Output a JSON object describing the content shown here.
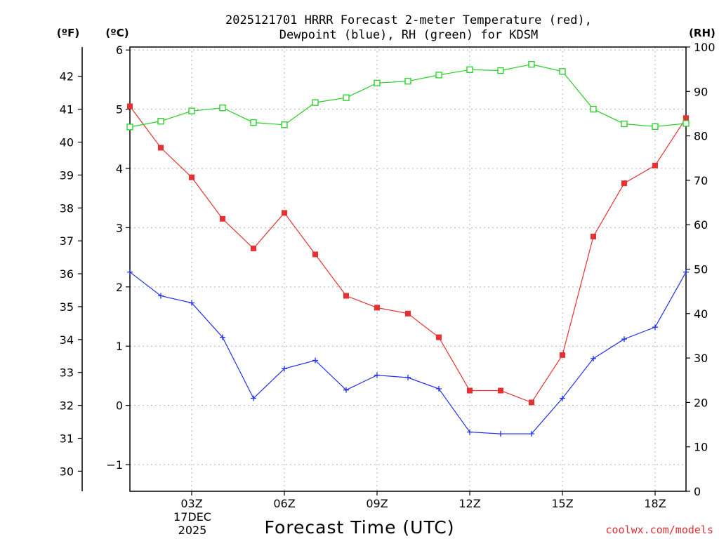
{
  "title_line1": "2025121701 HRRR Forecast 2-meter Temperature (red),",
  "title_line2": "Dewpoint (blue), RH (green) for KDSM",
  "units": {
    "fahrenheit": "(ºF)",
    "celsius": "(ºC)",
    "rh": "(RH)"
  },
  "xlabel": "Forecast Time (UTC)",
  "date_label": {
    "day": "17DEC",
    "year": "2025"
  },
  "credit": "coolwx.com/models",
  "colors": {
    "temperature": "#e83030",
    "dewpoint": "#2030e8",
    "rh": "#20d020"
  },
  "chart_data": {
    "type": "line",
    "title": "2025121701 HRRR Forecast 2-meter Temperature (red), Dewpoint (blue), RH (green) for KDSM",
    "x": [
      1,
      2,
      3,
      4,
      5,
      6,
      7,
      8,
      9,
      10,
      11,
      12,
      13,
      14,
      15,
      16,
      17,
      18,
      19
    ],
    "x_unit": "hour UTC",
    "xlim": [
      1,
      19
    ],
    "x_ticks": [
      {
        "value": 3,
        "label": "03Z"
      },
      {
        "value": 6,
        "label": "06Z"
      },
      {
        "value": 9,
        "label": "09Z"
      },
      {
        "value": 12,
        "label": "12Z"
      },
      {
        "value": 15,
        "label": "15Z"
      },
      {
        "value": 18,
        "label": "18Z"
      }
    ],
    "left_axis_c": {
      "label": "(ºC)",
      "range": [
        -1.45,
        6.05
      ],
      "ticks": [
        -1,
        0,
        1,
        2,
        3,
        4,
        5,
        6
      ]
    },
    "left_axis_f": {
      "label": "(ºF)",
      "range": [
        29.39,
        42.89
      ],
      "ticks": [
        30,
        31,
        32,
        33,
        34,
        35,
        36,
        37,
        38,
        39,
        40,
        41,
        42
      ]
    },
    "right_axis": {
      "label": "(RH)",
      "range": [
        0,
        100
      ],
      "ticks": [
        0,
        10,
        20,
        30,
        40,
        50,
        60,
        70,
        80,
        90,
        100
      ]
    },
    "grid": true,
    "series": [
      {
        "name": "Temperature",
        "axis": "celsius",
        "marker": "filled-square",
        "values": [
          5.05,
          4.35,
          3.85,
          3.15,
          2.65,
          3.25,
          2.55,
          1.85,
          1.65,
          1.55,
          1.15,
          0.25,
          0.25,
          0.05,
          0.85,
          2.85,
          3.75,
          4.05,
          4.85
        ]
      },
      {
        "name": "Dewpoint",
        "axis": "celsius",
        "marker": "plus",
        "values": [
          2.25,
          1.85,
          1.73,
          1.15,
          0.12,
          0.62,
          0.76,
          0.26,
          0.51,
          0.47,
          0.28,
          -0.45,
          -0.48,
          -0.48,
          0.12,
          0.79,
          1.12,
          1.32,
          2.25
        ]
      },
      {
        "name": "RH",
        "axis": "rh",
        "marker": "open-square",
        "values": [
          82,
          83.3,
          85.6,
          86.3,
          83,
          82.5,
          87.5,
          88.6,
          91.9,
          92.3,
          93.7,
          94.9,
          94.7,
          96.1,
          94.5,
          86,
          82.7,
          82.1,
          82.8
        ]
      }
    ]
  }
}
